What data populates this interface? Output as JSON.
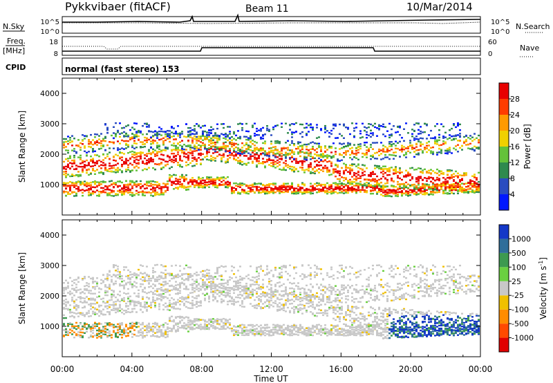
{
  "header": {
    "title": "Pykkvibaer (fitACF)",
    "beam": "Beam 11",
    "date": "10/Mar/2014"
  },
  "top_panels": {
    "nsky_label": "N.Sky",
    "nsky_ticks": [
      "10^5",
      "10^0"
    ],
    "nsearch_label": "N.Search",
    "nsearch_ticks": [
      "10^5",
      "10^0"
    ],
    "freq_label": "Freq.",
    "freq_unit": "[MHz]",
    "freq_ticks": [
      "18",
      "8"
    ],
    "nave_label": "Nave",
    "nave_ticks": [
      "60",
      "0"
    ],
    "cpid_label": "CPID",
    "cpid_text": "normal (fast stereo) 153"
  },
  "chart_data": [
    {
      "type": "heatmap",
      "panel": "power",
      "ylabel": "Slant Range [km]",
      "xlabel": "Time UT",
      "ylim": [
        0,
        4500
      ],
      "yticks": [
        "1000",
        "2000",
        "3000",
        "4000"
      ],
      "xticks": [
        "00:00",
        "04:00",
        "08:00",
        "12:00",
        "16:00",
        "20:00",
        "00:00"
      ],
      "colorbar": {
        "label": "Power [dB]",
        "ticks": [
          "4",
          "8",
          "12",
          "16",
          "20",
          "24",
          "28"
        ],
        "colors": [
          "#0018ff",
          "#2a4cc0",
          "#2f8a4e",
          "#64c23a",
          "#f0d000",
          "#ff9a00",
          "#ff3c00",
          "#e80000"
        ]
      }
    },
    {
      "type": "heatmap",
      "panel": "velocity",
      "ylabel": "Slant Range [km]",
      "xlabel": "Time UT",
      "ylim": [
        0,
        4500
      ],
      "yticks": [
        "1000",
        "2000",
        "3000",
        "4000"
      ],
      "xticks": [
        "00:00",
        "04:00",
        "08:00",
        "12:00",
        "16:00",
        "20:00",
        "00:00"
      ],
      "colorbar": {
        "label": "Velocity [m s",
        "label_sup": "-1",
        "label_end": "]",
        "ticks": [
          "1000",
          "500",
          "100",
          "25",
          "-25",
          "-100",
          "-500",
          "-1000"
        ],
        "colors": [
          "#1438c8",
          "#2f6e9a",
          "#3d9a50",
          "#6ad040",
          "#c8c8c8",
          "#f0c000",
          "#ff8c00",
          "#ff4a00",
          "#e00000"
        ]
      }
    }
  ],
  "x_axis_title": "Time UT"
}
